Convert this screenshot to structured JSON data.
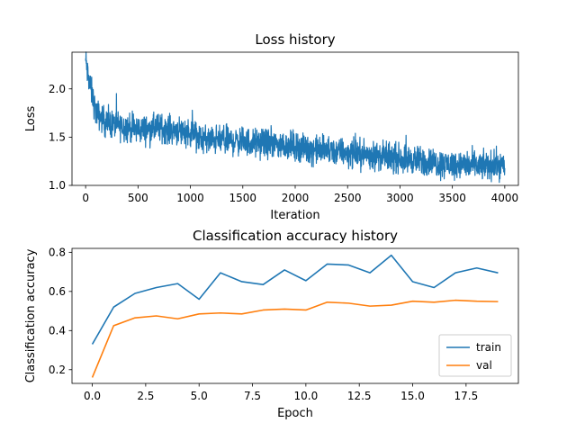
{
  "chart_data": [
    {
      "type": "line",
      "title": "Loss history",
      "xlabel": "Iteration",
      "ylabel": "Loss",
      "xlim": [
        -130,
        4130
      ],
      "ylim": [
        1.0,
        2.38
      ],
      "xticks": [
        0,
        500,
        1000,
        1500,
        2000,
        2500,
        3000,
        3500,
        4000
      ],
      "xtick_labels": [
        "0",
        "500",
        "1000",
        "1500",
        "2000",
        "2500",
        "3000",
        "3500",
        "4000"
      ],
      "yticks": [
        1.0,
        1.5,
        2.0
      ],
      "ytick_labels": [
        "1.0",
        "1.5",
        "2.0"
      ],
      "grid": false,
      "color": "#1f77b4",
      "noise_amplitude": 0.09,
      "series": [
        {
          "x": [
            0,
            20,
            50,
            100,
            200,
            300,
            400,
            500,
            600,
            700,
            800,
            900,
            1000,
            1100,
            1200,
            1300,
            1400,
            1500,
            1600,
            1700,
            1800,
            1900,
            2000,
            2100,
            2200,
            2300,
            2400,
            2500,
            2600,
            2700,
            2800,
            2900,
            3000,
            3100,
            3200,
            3300,
            3400,
            3500,
            3600,
            3700,
            3800,
            3900,
            4000
          ],
          "values": [
            2.3,
            2.15,
            2.0,
            1.75,
            1.65,
            1.62,
            1.6,
            1.58,
            1.58,
            1.6,
            1.58,
            1.57,
            1.55,
            1.48,
            1.47,
            1.47,
            1.46,
            1.46,
            1.44,
            1.44,
            1.43,
            1.42,
            1.41,
            1.38,
            1.37,
            1.36,
            1.35,
            1.34,
            1.33,
            1.32,
            1.3,
            1.29,
            1.28,
            1.27,
            1.25,
            1.24,
            1.22,
            1.22,
            1.21,
            1.21,
            1.2,
            1.21,
            1.21
          ]
        }
      ]
    },
    {
      "type": "line",
      "title": "Classification accuracy history",
      "xlabel": "Epoch",
      "ylabel": "Classification accuracy",
      "xlim": [
        -0.95,
        19.95
      ],
      "ylim": [
        0.13,
        0.82
      ],
      "xticks": [
        0,
        2.5,
        5,
        7.5,
        10,
        12.5,
        15,
        17.5
      ],
      "xtick_labels": [
        "0.0",
        "2.5",
        "5.0",
        "7.5",
        "10.0",
        "12.5",
        "15.0",
        "17.5"
      ],
      "yticks": [
        0.2,
        0.4,
        0.6,
        0.8
      ],
      "ytick_labels": [
        "0.2",
        "0.4",
        "0.6",
        "0.8"
      ],
      "grid": false,
      "legend": "lower-right",
      "x": [
        0,
        1,
        2,
        3,
        4,
        5,
        6,
        7,
        8,
        9,
        10,
        11,
        12,
        13,
        14,
        15,
        16,
        17,
        18,
        19
      ],
      "series": [
        {
          "name": "train",
          "color": "#1f77b4",
          "values": [
            0.33,
            0.52,
            0.59,
            0.62,
            0.64,
            0.56,
            0.695,
            0.65,
            0.635,
            0.71,
            0.655,
            0.74,
            0.735,
            0.695,
            0.785,
            0.65,
            0.62,
            0.695,
            0.72,
            0.695
          ]
        },
        {
          "name": "val",
          "color": "#ff7f0e",
          "values": [
            0.16,
            0.425,
            0.465,
            0.475,
            0.46,
            0.485,
            0.49,
            0.485,
            0.505,
            0.51,
            0.505,
            0.545,
            0.54,
            0.525,
            0.53,
            0.55,
            0.545,
            0.555,
            0.55,
            0.548
          ]
        }
      ]
    }
  ]
}
